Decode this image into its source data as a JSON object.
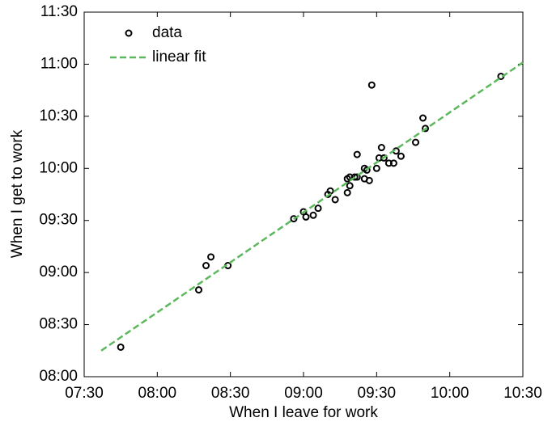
{
  "chart_data": {
    "type": "scatter",
    "xlabel": "When I leave for work",
    "ylabel": "When I get to work",
    "xlim": [
      450,
      630
    ],
    "ylim": [
      480,
      690
    ],
    "xticks": [
      {
        "value": 450,
        "label": "07:30"
      },
      {
        "value": 480,
        "label": "08:00"
      },
      {
        "value": 510,
        "label": "08:30"
      },
      {
        "value": 540,
        "label": "09:00"
      },
      {
        "value": 570,
        "label": "09:30"
      },
      {
        "value": 600,
        "label": "10:00"
      },
      {
        "value": 630,
        "label": "10:30"
      }
    ],
    "yticks": [
      {
        "value": 480,
        "label": "08:00"
      },
      {
        "value": 510,
        "label": "08:30"
      },
      {
        "value": 540,
        "label": "09:00"
      },
      {
        "value": 570,
        "label": "09:30"
      },
      {
        "value": 600,
        "label": "10:00"
      },
      {
        "value": 630,
        "label": "10:30"
      },
      {
        "value": 660,
        "label": "11:00"
      },
      {
        "value": 690,
        "label": "11:30"
      }
    ],
    "legend": "upper left",
    "series": [
      {
        "name": "data",
        "color": "#000000",
        "style": "markers",
        "x": [
          465,
          497,
          500,
          502,
          509,
          536,
          540,
          541,
          544,
          546,
          550,
          551,
          553,
          558,
          558,
          559,
          559,
          561,
          562,
          562,
          565,
          565,
          566,
          567,
          568,
          570,
          571,
          572,
          573,
          575,
          577,
          578,
          580,
          586,
          589,
          590,
          621
        ],
        "values": [
          497,
          530,
          544,
          549,
          544,
          571,
          575,
          572,
          573,
          577,
          585,
          587,
          582,
          594,
          586,
          590,
          595,
          595,
          608,
          595,
          594,
          600,
          599,
          593,
          648,
          600,
          606,
          612,
          606,
          603,
          603,
          610,
          607,
          615,
          629,
          623,
          653
        ]
      },
      {
        "name": "linear fit",
        "color": "#5cb85c",
        "style": "dashed",
        "x": [
          457,
          630
        ],
        "values": [
          495,
          661
        ]
      }
    ]
  }
}
